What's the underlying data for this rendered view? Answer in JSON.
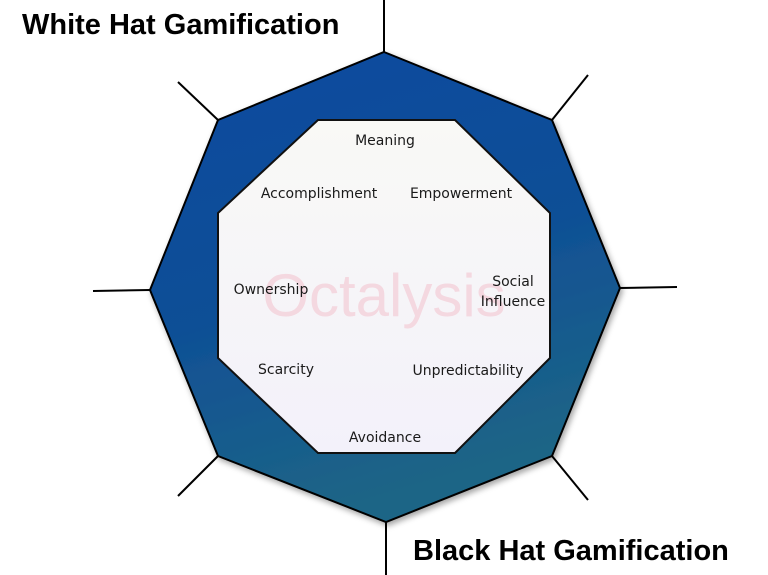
{
  "titles": {
    "white_hat": "White Hat Gamification",
    "black_hat": "Black Hat Gamification"
  },
  "watermark": "Octalysis",
  "core_drives": {
    "meaning": "Meaning",
    "accomplishment": "Accomplishment",
    "empowerment": "Empowerment",
    "ownership": "Ownership",
    "social_influence_1": "Social",
    "social_influence_2": "Influence",
    "scarcity": "Scarcity",
    "unpredictability": "Unpredictability",
    "avoidance": "Avoidance"
  },
  "colors": {
    "outer_fill_top": "#0a4aa0",
    "outer_fill_bottom": "#1a6088",
    "inner_fill": "#f7f6fb",
    "spoke": "#000000",
    "watermark": "#f4cfd8"
  }
}
